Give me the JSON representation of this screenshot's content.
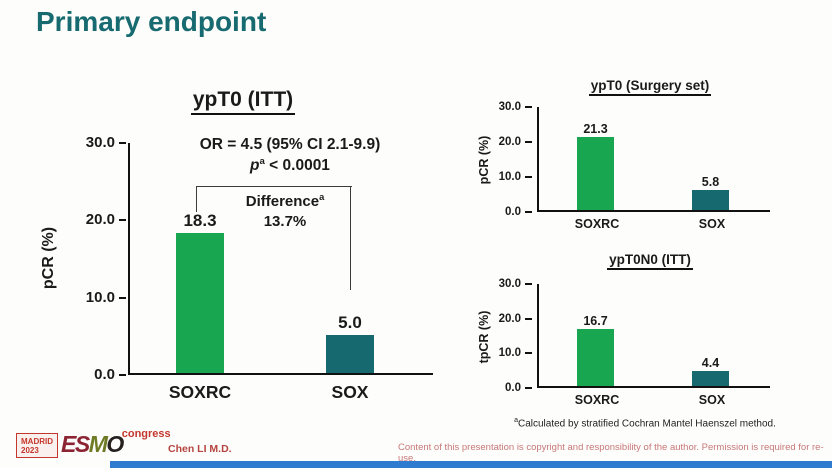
{
  "title": {
    "text": "Primary endpoint"
  },
  "colors": {
    "title_teal": "#176b70",
    "accent_red": "#c4372c",
    "footer_red": "#c87878",
    "bottom_bar_blue": "#2e7bd0"
  },
  "chart_data": [
    {
      "type": "bar",
      "title": "ypT0 (ITT)",
      "categories": [
        "SOXRC",
        "SOX"
      ],
      "values": [
        18.3,
        5.0
      ],
      "value_labels": [
        "18.3",
        "5.0"
      ],
      "xlabel": "",
      "ylabel": "pCR (%)",
      "ylim": [
        0,
        30
      ],
      "yticks": [
        "30.0",
        "20.0",
        "10.0",
        "0.0"
      ],
      "bar_colors": [
        "#18a650",
        "#176970"
      ],
      "grid": "off",
      "legend": "none",
      "annotations": {
        "or_line": "OR = 4.5 (95% CI 2.1-9.9)",
        "p_label": "p",
        "p_sup": "a",
        "p_rest": " < 0.0001",
        "diff_label": "Difference",
        "diff_sup": "a",
        "diff_value": "13.7%"
      }
    },
    {
      "type": "bar",
      "title": "ypT0 (Surgery set)",
      "categories": [
        "SOXRC",
        "SOX"
      ],
      "values": [
        21.3,
        5.8
      ],
      "value_labels": [
        "21.3",
        "5.8"
      ],
      "xlabel": "",
      "ylabel": "pCR (%)",
      "ylim": [
        0,
        30
      ],
      "yticks": [
        "30.0",
        "20.0",
        "10.0",
        "0.0"
      ],
      "bar_colors": [
        "#18a650",
        "#176970"
      ],
      "grid": "off",
      "legend": "none"
    },
    {
      "type": "bar",
      "title": "ypT0N0 (ITT)",
      "categories": [
        "SOXRC",
        "SOX"
      ],
      "values": [
        16.7,
        4.4
      ],
      "value_labels": [
        "16.7",
        "4.4"
      ],
      "xlabel": "",
      "ylabel": "tpCR (%)",
      "ylim": [
        0,
        30
      ],
      "yticks": [
        "30.0",
        "20.0",
        "10.0",
        "0.0"
      ],
      "bar_colors": [
        "#18a650",
        "#176970"
      ],
      "grid": "off",
      "legend": "none"
    }
  ],
  "footer": {
    "footnote_sup": "a",
    "footnote_text": "Calculated by stratified Cochran Mantel Haenszel method.",
    "author": "Chen LI M.D.",
    "copyright": "Content of this presentation is copyright and responsibility of the author. Permission is required for re-use."
  },
  "logo": {
    "city": "MADRID",
    "year": "2023",
    "letters": [
      "E",
      "S",
      "M",
      "O"
    ],
    "suffix": "congress"
  }
}
